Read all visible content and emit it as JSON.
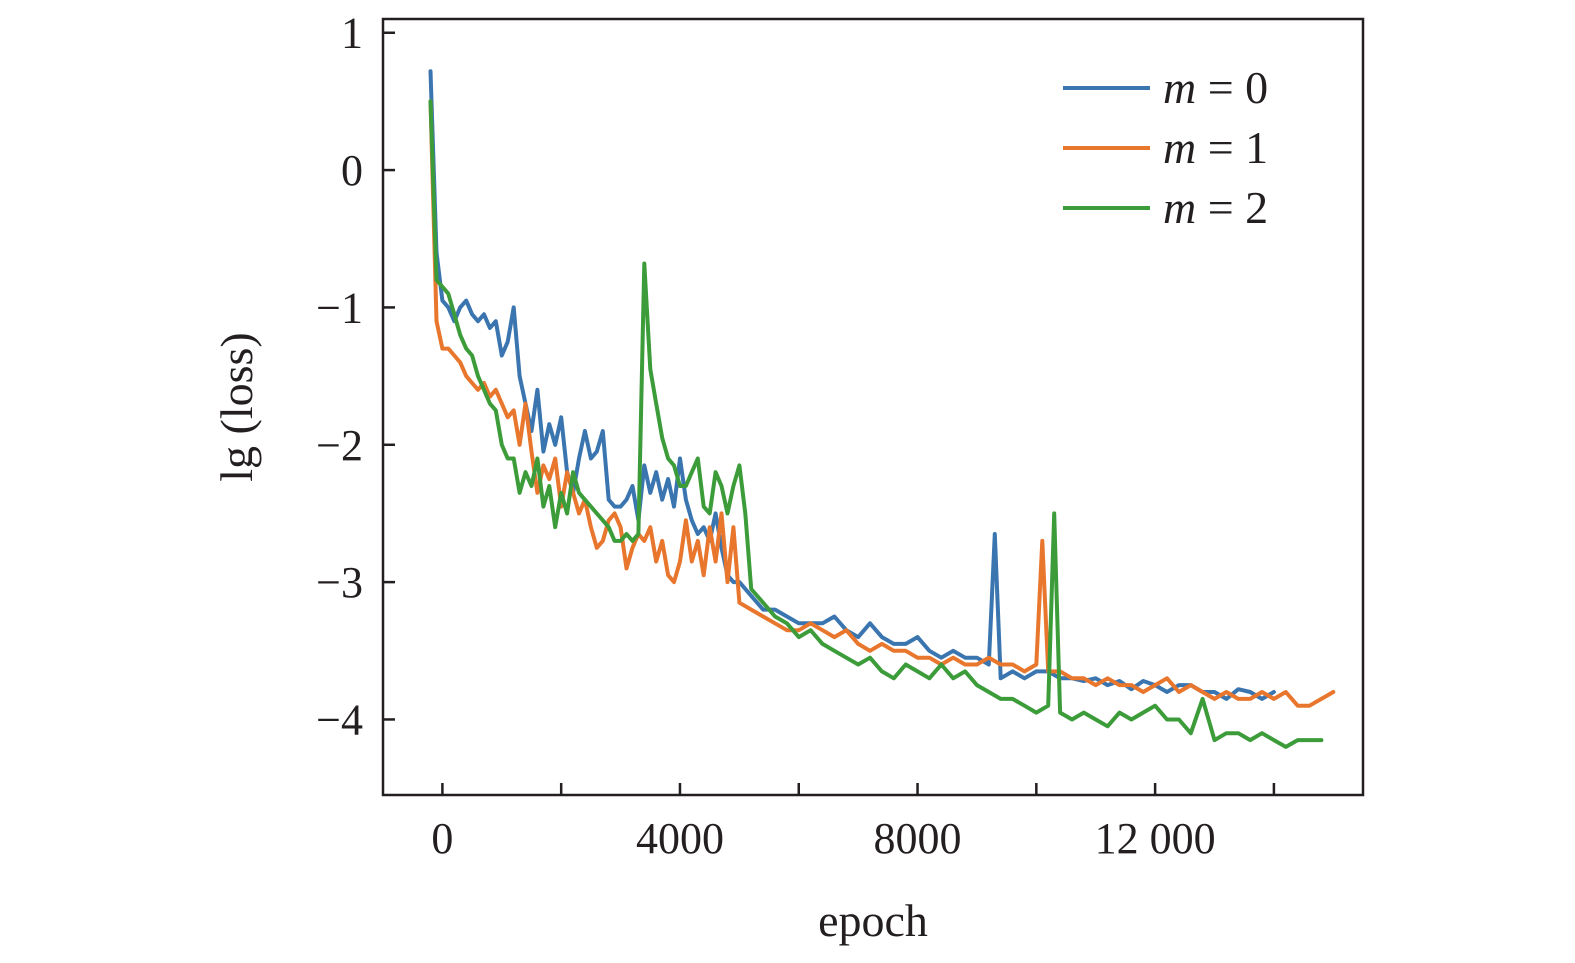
{
  "chart_data": {
    "type": "line",
    "title": "",
    "xlabel": "epoch",
    "ylabel": "lg (loss)",
    "xlim": [
      -1000,
      15500
    ],
    "ylim": [
      -4.55,
      1.1
    ],
    "xticks": [
      0,
      4000,
      8000,
      12000
    ],
    "xtick_labels": [
      "0",
      "4000",
      "8000",
      "12 000"
    ],
    "xticks_minor": [
      2000,
      6000,
      10000,
      14000
    ],
    "yticks": [
      1,
      0,
      -1,
      -2,
      -3,
      -4
    ],
    "ytick_labels": [
      "1",
      "0",
      "−1",
      "−2",
      "−3",
      "−4"
    ],
    "grid": false,
    "legend_position": "top-right",
    "series": [
      {
        "name": "m = 0",
        "legend_var": "m",
        "legend_rest": " = 0",
        "color": "#3a75b0",
        "x": [
          -200,
          -100,
          0,
          100,
          200,
          300,
          400,
          500,
          600,
          700,
          800,
          900,
          1000,
          1100,
          1200,
          1300,
          1400,
          1500,
          1600,
          1700,
          1800,
          1900,
          2000,
          2100,
          2200,
          2300,
          2400,
          2500,
          2600,
          2700,
          2800,
          2900,
          3000,
          3100,
          3200,
          3300,
          3400,
          3500,
          3600,
          3700,
          3800,
          3900,
          4000,
          4100,
          4200,
          4300,
          4400,
          4500,
          4600,
          4700,
          4800,
          4900,
          5000,
          5200,
          5400,
          5600,
          5800,
          6000,
          6200,
          6400,
          6600,
          6800,
          7000,
          7200,
          7400,
          7600,
          7800,
          8000,
          8200,
          8400,
          8600,
          8800,
          9000,
          9200,
          9300,
          9400,
          9600,
          9800,
          10000,
          10200,
          10400,
          10600,
          10800,
          11000,
          11200,
          11400,
          11600,
          11800,
          12000,
          12200,
          12400,
          12600,
          12800,
          13000,
          13200,
          13400,
          13600,
          13800,
          14000
        ],
        "y": [
          0.72,
          -0.6,
          -0.95,
          -1.0,
          -1.1,
          -1.0,
          -0.95,
          -1.05,
          -1.1,
          -1.05,
          -1.15,
          -1.1,
          -1.35,
          -1.25,
          -1.0,
          -1.5,
          -1.7,
          -1.9,
          -1.6,
          -2.05,
          -1.85,
          -2.0,
          -1.8,
          -2.2,
          -2.35,
          -2.1,
          -1.9,
          -2.1,
          -2.05,
          -1.9,
          -2.4,
          -2.45,
          -2.45,
          -2.4,
          -2.3,
          -2.55,
          -2.15,
          -2.35,
          -2.2,
          -2.4,
          -2.25,
          -2.45,
          -2.1,
          -2.4,
          -2.55,
          -2.65,
          -2.6,
          -2.7,
          -2.5,
          -2.75,
          -2.95,
          -3.0,
          -3.0,
          -3.1,
          -3.2,
          -3.2,
          -3.25,
          -3.3,
          -3.3,
          -3.3,
          -3.25,
          -3.35,
          -3.4,
          -3.3,
          -3.4,
          -3.45,
          -3.45,
          -3.4,
          -3.5,
          -3.55,
          -3.5,
          -3.55,
          -3.55,
          -3.6,
          -2.65,
          -3.7,
          -3.65,
          -3.7,
          -3.65,
          -3.65,
          -3.7,
          -3.7,
          -3.72,
          -3.7,
          -3.75,
          -3.72,
          -3.78,
          -3.72,
          -3.75,
          -3.8,
          -3.75,
          -3.75,
          -3.8,
          -3.8,
          -3.85,
          -3.78,
          -3.8,
          -3.85,
          -3.8
        ]
      },
      {
        "name": "m = 1",
        "legend_var": "m",
        "legend_rest": " = 1",
        "color": "#e8762d",
        "x": [
          -200,
          -100,
          0,
          100,
          200,
          300,
          400,
          500,
          600,
          700,
          800,
          900,
          1000,
          1100,
          1200,
          1300,
          1400,
          1500,
          1600,
          1700,
          1800,
          1900,
          2000,
          2100,
          2200,
          2300,
          2400,
          2500,
          2600,
          2700,
          2800,
          2900,
          3000,
          3100,
          3200,
          3300,
          3400,
          3500,
          3600,
          3700,
          3800,
          3900,
          4000,
          4100,
          4200,
          4300,
          4400,
          4500,
          4600,
          4700,
          4800,
          4900,
          5000,
          5200,
          5400,
          5600,
          5800,
          6000,
          6200,
          6400,
          6600,
          6800,
          7000,
          7200,
          7400,
          7600,
          7800,
          8000,
          8200,
          8400,
          8600,
          8800,
          9000,
          9200,
          9400,
          9600,
          9800,
          10000,
          10100,
          10200,
          10400,
          10600,
          10800,
          11000,
          11200,
          11400,
          11600,
          11800,
          12000,
          12200,
          12400,
          12600,
          12800,
          13000,
          13200,
          13400,
          13600,
          13800,
          14000,
          14200,
          14400,
          14600,
          14800,
          15000
        ],
        "y": [
          0.5,
          -1.1,
          -1.3,
          -1.3,
          -1.35,
          -1.4,
          -1.5,
          -1.55,
          -1.6,
          -1.55,
          -1.65,
          -1.6,
          -1.7,
          -1.8,
          -1.75,
          -2.0,
          -1.7,
          -2.05,
          -2.35,
          -2.15,
          -2.25,
          -2.1,
          -2.45,
          -2.2,
          -2.35,
          -2.5,
          -2.4,
          -2.6,
          -2.75,
          -2.7,
          -2.55,
          -2.5,
          -2.6,
          -2.9,
          -2.75,
          -2.65,
          -2.7,
          -2.6,
          -2.85,
          -2.7,
          -2.95,
          -3.0,
          -2.85,
          -2.55,
          -2.85,
          -2.7,
          -2.95,
          -2.6,
          -2.85,
          -2.5,
          -3.0,
          -2.6,
          -3.15,
          -3.2,
          -3.25,
          -3.3,
          -3.35,
          -3.35,
          -3.3,
          -3.35,
          -3.4,
          -3.35,
          -3.45,
          -3.5,
          -3.45,
          -3.5,
          -3.5,
          -3.55,
          -3.55,
          -3.6,
          -3.55,
          -3.6,
          -3.6,
          -3.55,
          -3.6,
          -3.6,
          -3.65,
          -3.6,
          -2.7,
          -3.65,
          -3.65,
          -3.7,
          -3.7,
          -3.75,
          -3.7,
          -3.75,
          -3.75,
          -3.8,
          -3.75,
          -3.7,
          -3.8,
          -3.75,
          -3.8,
          -3.85,
          -3.8,
          -3.85,
          -3.85,
          -3.8,
          -3.85,
          -3.8,
          -3.9,
          -3.9,
          -3.85,
          -3.8
        ]
      },
      {
        "name": "m = 2",
        "legend_var": "m",
        "legend_rest": " = 2",
        "color": "#3c9c3a",
        "x": [
          -200,
          -100,
          0,
          100,
          200,
          300,
          400,
          500,
          600,
          700,
          800,
          900,
          1000,
          1100,
          1200,
          1300,
          1400,
          1500,
          1600,
          1700,
          1800,
          1900,
          2000,
          2100,
          2200,
          2300,
          2400,
          2500,
          2600,
          2700,
          2800,
          2900,
          3000,
          3100,
          3200,
          3300,
          3400,
          3500,
          3600,
          3700,
          3800,
          3900,
          4000,
          4100,
          4200,
          4300,
          4400,
          4500,
          4600,
          4700,
          4800,
          4900,
          5000,
          5100,
          5200,
          5400,
          5600,
          5800,
          6000,
          6200,
          6400,
          6600,
          6800,
          7000,
          7200,
          7400,
          7600,
          7800,
          8000,
          8200,
          8400,
          8600,
          8800,
          9000,
          9200,
          9400,
          9600,
          9800,
          10000,
          10200,
          10300,
          10400,
          10600,
          10800,
          11000,
          11200,
          11400,
          11600,
          11800,
          12000,
          12200,
          12400,
          12600,
          12800,
          13000,
          13200,
          13400,
          13600,
          13800,
          14000,
          14200,
          14400,
          14600,
          14800
        ],
        "y": [
          0.5,
          -0.8,
          -0.85,
          -0.9,
          -1.05,
          -1.2,
          -1.3,
          -1.35,
          -1.5,
          -1.6,
          -1.7,
          -1.75,
          -2.0,
          -2.1,
          -2.1,
          -2.35,
          -2.2,
          -2.3,
          -2.1,
          -2.45,
          -2.3,
          -2.6,
          -2.35,
          -2.5,
          -2.2,
          -2.35,
          -2.4,
          -2.45,
          -2.5,
          -2.55,
          -2.6,
          -2.7,
          -2.7,
          -2.65,
          -2.7,
          -2.65,
          -0.68,
          -1.45,
          -1.7,
          -1.95,
          -2.1,
          -2.15,
          -2.3,
          -2.3,
          -2.2,
          -2.1,
          -2.45,
          -2.5,
          -2.2,
          -2.3,
          -2.5,
          -2.3,
          -2.15,
          -2.5,
          -3.05,
          -3.15,
          -3.25,
          -3.3,
          -3.4,
          -3.35,
          -3.45,
          -3.5,
          -3.55,
          -3.6,
          -3.55,
          -3.65,
          -3.7,
          -3.6,
          -3.65,
          -3.7,
          -3.6,
          -3.7,
          -3.65,
          -3.75,
          -3.8,
          -3.85,
          -3.85,
          -3.9,
          -3.95,
          -3.9,
          -2.5,
          -3.95,
          -4.0,
          -3.95,
          -4.0,
          -4.05,
          -3.95,
          -4.0,
          -3.95,
          -3.9,
          -4.0,
          -4.0,
          -4.1,
          -3.85,
          -4.15,
          -4.1,
          -4.1,
          -4.15,
          -4.1,
          -4.15,
          -4.2,
          -4.15,
          -4.15,
          -4.15
        ]
      }
    ]
  }
}
